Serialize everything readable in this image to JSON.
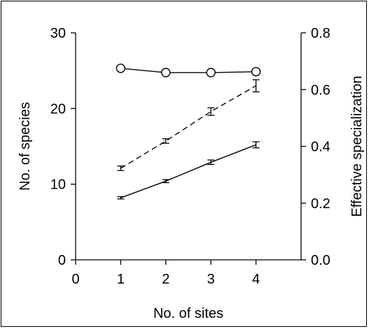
{
  "chart_data": {
    "type": "line",
    "title": "",
    "xlabel": "No. of sites",
    "ylabel": "No. of species",
    "y2label": "Effective specialization",
    "xlim": [
      0,
      5
    ],
    "ylim": [
      0,
      30
    ],
    "y2lim": [
      0,
      0.8
    ],
    "xticks": [
      "0",
      "1",
      "2",
      "3",
      "4"
    ],
    "yticks": [
      "0",
      "10",
      "20",
      "30"
    ],
    "y2ticks": [
      "0.0",
      "0.2",
      "0.4",
      "0.6",
      "0.8"
    ],
    "grid": false,
    "legend": "none",
    "x": [
      1,
      2,
      3,
      4
    ],
    "series": [
      {
        "axis": "right",
        "style": "solid-open-circle",
        "values": [
          0.675,
          0.66,
          0.66,
          0.663
        ]
      },
      {
        "axis": "left",
        "style": "dashed-errorbar",
        "values": [
          12.1,
          15.7,
          19.6,
          23.0
        ],
        "errors": [
          0.3,
          0.3,
          0.5,
          0.8
        ]
      },
      {
        "axis": "left",
        "style": "solid-errorbar",
        "values": [
          8.2,
          10.4,
          12.9,
          15.2
        ],
        "errors": [
          0.15,
          0.2,
          0.3,
          0.4
        ]
      }
    ]
  }
}
